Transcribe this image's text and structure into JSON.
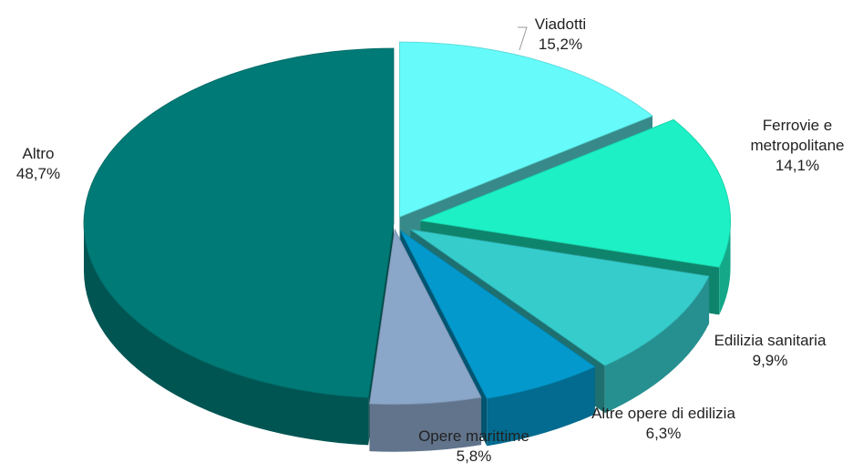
{
  "chart_data": {
    "type": "pie3d",
    "categories": [
      "Viadotti",
      "Ferrovie e metropolitane",
      "Edilizia sanitaria",
      "Altre opere di edilizia",
      "Opere marittime",
      "Altro"
    ],
    "values": [
      15.2,
      14.1,
      9.9,
      6.3,
      5.8,
      48.7
    ],
    "value_labels": [
      "15,2%",
      "14,1%",
      "9,9%",
      "6,3%",
      "5,8%",
      "48,7%"
    ],
    "colors": [
      "#66fafa",
      "#1cf0c4",
      "#36cccc",
      "#0399cc",
      "#8aa6c8",
      "#007a76"
    ]
  }
}
